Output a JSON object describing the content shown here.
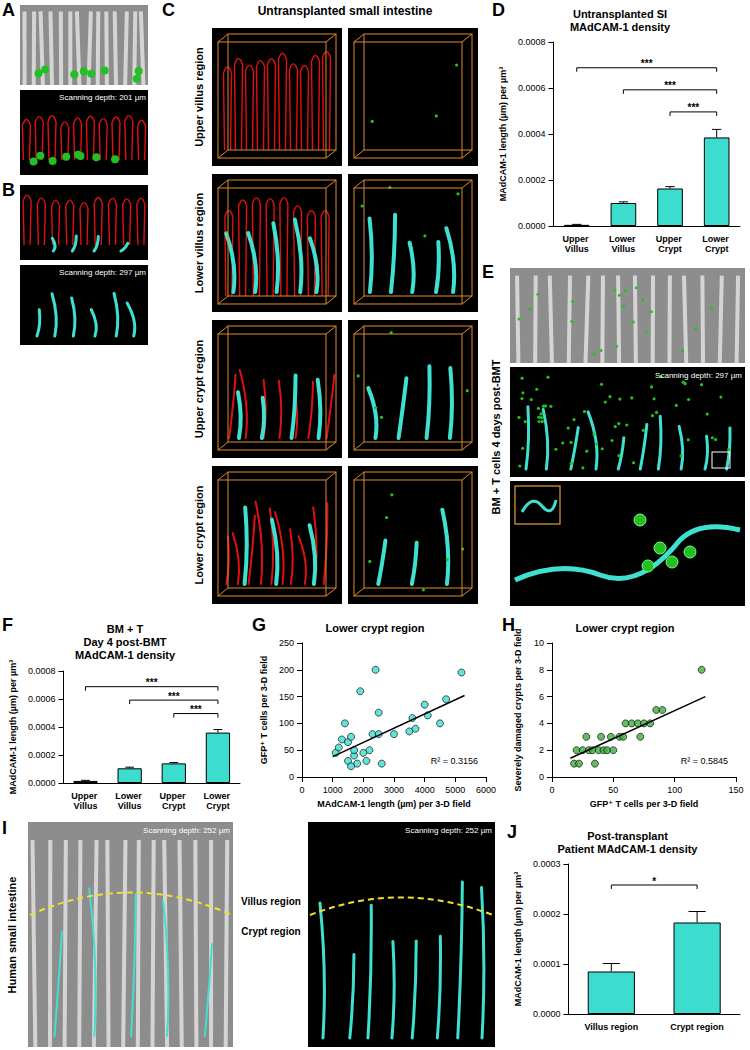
{
  "image_panels": [
    {
      "panel": "A",
      "texts": [
        "Scanning depth: 201 µm"
      ]
    },
    {
      "panel": "B",
      "texts": [
        "Scanning depth: 297 µm"
      ]
    },
    {
      "panel": "C",
      "title": "Untransplanted small intestine",
      "rows": [
        "Upper villus region",
        "Lower villus region",
        "Upper crypt region",
        "Lower crypt region"
      ]
    },
    {
      "panel": "E",
      "side_label": "BM + T cells 4 days post-BMT",
      "texts": [
        "Scanning depth: 297 µm"
      ]
    },
    {
      "panel": "I",
      "side_label": "Human small intestine",
      "texts": [
        "Scanning depth: 252 µm",
        "Scanning depth: 252 µm"
      ],
      "regions": [
        "Villus region",
        "Crypt region"
      ]
    }
  ],
  "chart_data": [
    {
      "panel": "D",
      "type": "bar",
      "title": "Untransplanted SI\nMAdCAM-1 density",
      "y_label": "MAdCAM-1 length (µm) per µm³",
      "categories": [
        "Upper Villus",
        "Lower Villus",
        "Upper Crypt",
        "Lower Crypt"
      ],
      "values": [
        5e-06,
        0.0001,
        0.000163,
        0.000385
      ],
      "errors": [
        2e-06,
        5e-06,
        8e-06,
        3.5e-05
      ],
      "color": "#3cdccf",
      "ylim": [
        0,
        0.0008
      ],
      "yticks": [
        {
          "value": 0,
          "label": "0.0000"
        },
        {
          "value": 0.0002,
          "label": "0.0002"
        },
        {
          "value": 0.0004,
          "label": "0.0004"
        },
        {
          "value": 0.0006,
          "label": "0.0006"
        },
        {
          "value": 0.0008,
          "label": "0.0008"
        }
      ],
      "grid": false,
      "significance": [
        {
          "between": [
            "Upper Villus",
            "Lower Crypt"
          ],
          "label": "***"
        },
        {
          "between": [
            "Lower Villus",
            "Lower Crypt"
          ],
          "label": "***"
        },
        {
          "between": [
            "Upper Crypt",
            "Lower Crypt"
          ],
          "label": "***"
        }
      ]
    },
    {
      "panel": "F",
      "type": "bar",
      "title": "BM + T\nDay 4 post-BMT\nMAdCAM-1 density",
      "y_label": "MAdCAM-1 length (µm) per µm³",
      "categories": [
        "Upper Villus",
        "Lower Villus",
        "Upper Crypt",
        "Lower Crypt"
      ],
      "values": [
        1.5e-05,
        0.000105,
        0.00014,
        0.00036
      ],
      "errors": [
        4e-06,
        8e-06,
        6e-06,
        2.2e-05
      ],
      "color": "#3cdccf",
      "ylim": [
        0,
        0.0008
      ],
      "yticks": [
        {
          "value": 0,
          "label": "0.0000"
        },
        {
          "value": 0.0002,
          "label": "0.0002"
        },
        {
          "value": 0.0004,
          "label": "0.0004"
        },
        {
          "value": 0.0006,
          "label": "0.0006"
        },
        {
          "value": 0.0008,
          "label": "0.0008"
        }
      ],
      "grid": false,
      "significance": [
        {
          "between": [
            "Upper Villus",
            "Lower Crypt"
          ],
          "label": "***"
        },
        {
          "between": [
            "Lower Villus",
            "Lower Crypt"
          ],
          "label": "***"
        },
        {
          "between": [
            "Upper Crypt",
            "Lower Crypt"
          ],
          "label": "***"
        }
      ]
    },
    {
      "panel": "G",
      "type": "scatter",
      "title": "Lower crypt region",
      "x_label": "MAdCAM-1 length (µm) per 3-D field",
      "y_label": "GFP⁺ T cells per 3-D field",
      "x": [
        1100,
        1200,
        1300,
        1400,
        1500,
        1500,
        1600,
        1600,
        1700,
        1700,
        1800,
        1900,
        2000,
        2100,
        2200,
        2300,
        2400,
        2500,
        2500,
        2600,
        3000,
        3500,
        3600,
        3700,
        4000,
        4100,
        4500,
        4700,
        5200
      ],
      "values": [
        45,
        55,
        70,
        100,
        30,
        65,
        75,
        20,
        40,
        50,
        25,
        160,
        45,
        30,
        50,
        80,
        200,
        120,
        80,
        25,
        80,
        85,
        110,
        90,
        135,
        115,
        100,
        145,
        195
      ],
      "trend_line": {
        "x": [
          1000,
          5300
        ],
        "values": [
          38,
          152
        ]
      },
      "annotation": "R² = 0.3156",
      "color": "#3cdccf",
      "marker": "circle",
      "xlim": [
        0,
        6000
      ],
      "xticks": [
        0,
        1000,
        2000,
        3000,
        4000,
        5000,
        6000
      ],
      "ylim": [
        0,
        250
      ],
      "yticks": [
        0,
        50,
        100,
        150,
        200,
        250
      ],
      "grid": false
    },
    {
      "panel": "H",
      "type": "scatter",
      "title": "Lower crypt region",
      "x_label": "GFP⁺ T cells per 3-D field",
      "y_label": "Severely damaged crypts per 3-D field",
      "x": [
        18,
        20,
        22,
        25,
        28,
        30,
        33,
        35,
        38,
        40,
        42,
        45,
        48,
        50,
        55,
        58,
        60,
        65,
        70,
        72,
        75,
        80,
        85,
        90,
        122
      ],
      "values": [
        1,
        2,
        1,
        2,
        3,
        2,
        2,
        1,
        2,
        3,
        2,
        2,
        3,
        2,
        3,
        3,
        4,
        4,
        4,
        3,
        4,
        4,
        5,
        5,
        8
      ],
      "trend_line": {
        "x": [
          15,
          125
        ],
        "values": [
          1.4,
          6.0
        ]
      },
      "annotation": "R² = 0.5845",
      "color": "#3fae3f",
      "marker": "circle",
      "xlim": [
        0,
        150
      ],
      "xticks": [
        0,
        50,
        100,
        150
      ],
      "ylim": [
        0,
        10
      ],
      "yticks": [
        0,
        2,
        4,
        6,
        8,
        10
      ],
      "grid": false
    },
    {
      "panel": "J",
      "type": "bar",
      "title": "Post-transplant\nPatient MAdCAM-1 density",
      "y_label": "MAdCAM-1 length (µm) per µm³",
      "categories": [
        "Villus region",
        "Crypt region"
      ],
      "values": [
        8.5e-05,
        0.000183
      ],
      "errors": [
        1.6e-05,
        2.2e-05
      ],
      "color": "#3cdccf",
      "ylim": [
        0,
        0.0003
      ],
      "yticks": [
        {
          "value": 0,
          "label": "0.0000"
        },
        {
          "value": 0.0001,
          "label": "0.0001"
        },
        {
          "value": 0.0002,
          "label": "0.0002"
        },
        {
          "value": 0.0003,
          "label": "0.0003"
        }
      ],
      "grid": false,
      "significance": [
        {
          "between": [
            "Villus region",
            "Crypt region"
          ],
          "label": "*"
        }
      ]
    }
  ]
}
